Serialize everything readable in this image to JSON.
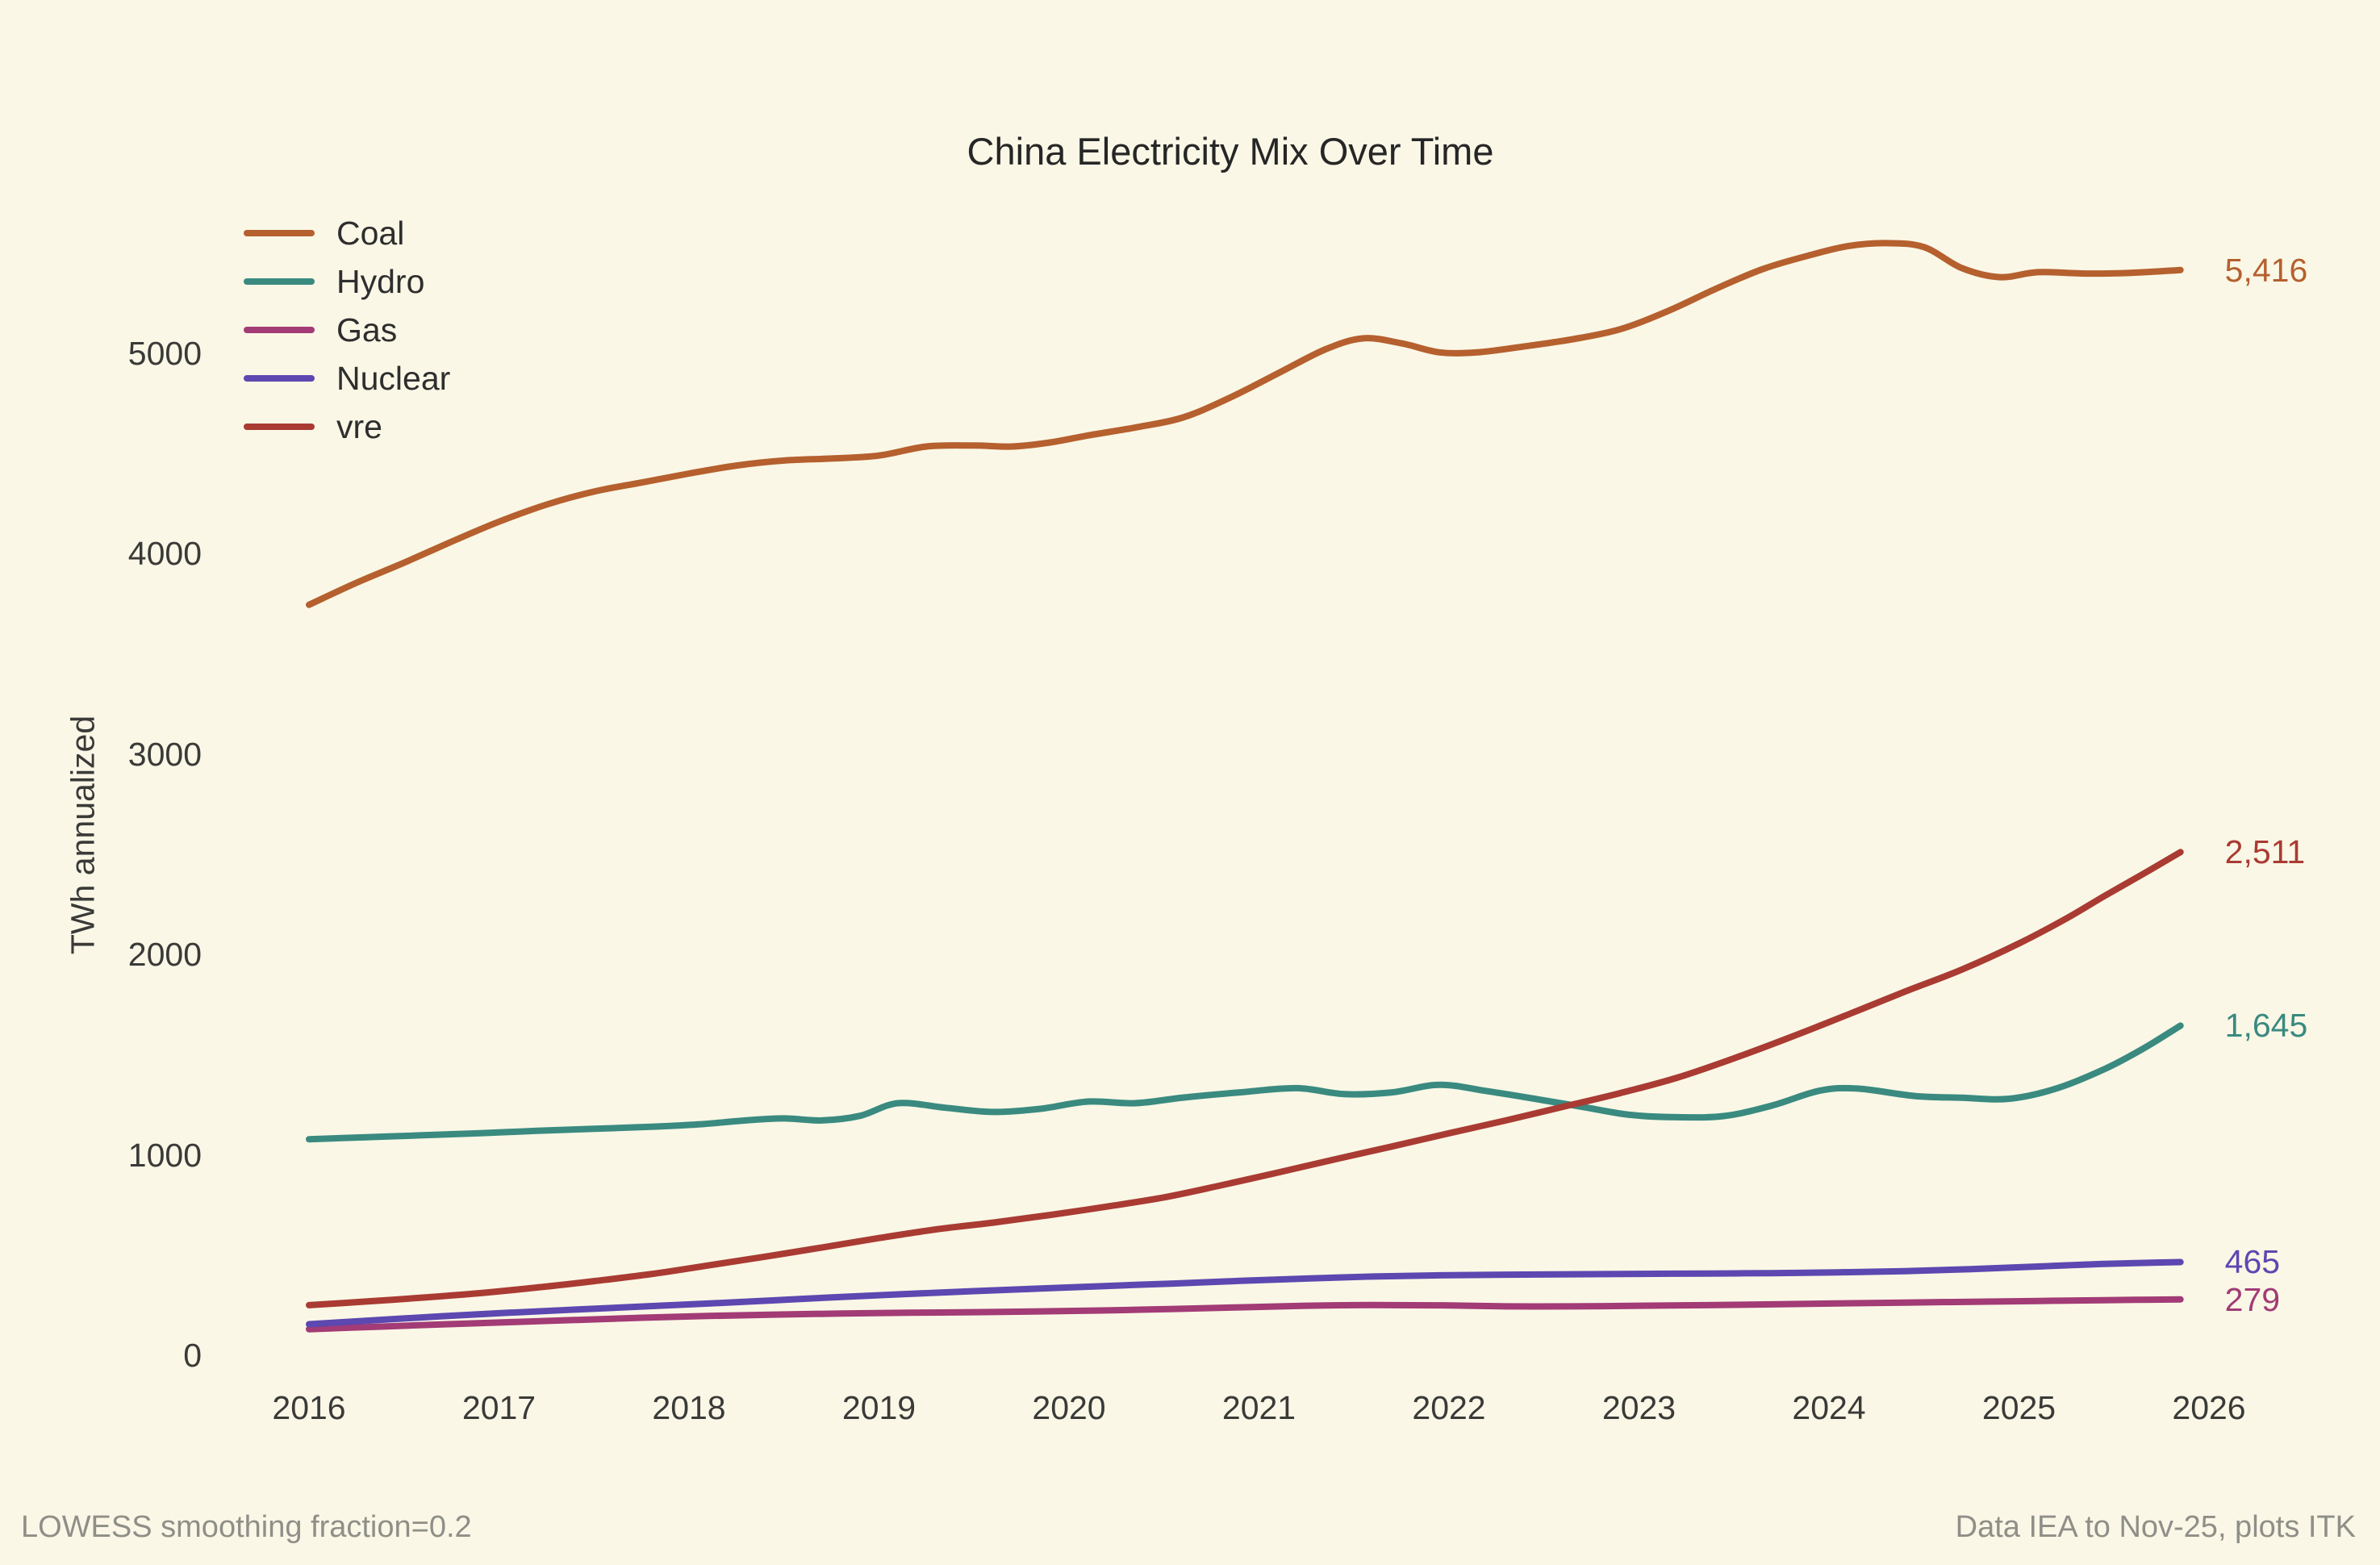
{
  "chart_data": {
    "type": "line",
    "title": "China Electricity Mix Over Time",
    "xlabel": "",
    "ylabel": "TWh annualized",
    "x_ticks": [
      2016,
      2017,
      2018,
      2019,
      2020,
      2021,
      2022,
      2023,
      2024,
      2025,
      2026
    ],
    "y_ticks": [
      0,
      1000,
      2000,
      3000,
      4000,
      5000
    ],
    "xlim": [
      2015.85,
      2026.9
    ],
    "ylim": [
      0,
      5800
    ],
    "grid": false,
    "axis_spines": false,
    "legend_position": "upper-left",
    "x_units": "year",
    "data_end": "Nov-2025",
    "series": [
      {
        "name": "Coal",
        "color": "#B5602E",
        "end_label": "5,416",
        "end_value": 5416,
        "x": [
          2016,
          2016.25,
          2016.5,
          2016.75,
          2017,
          2017.25,
          2017.5,
          2017.75,
          2018,
          2018.25,
          2018.5,
          2018.75,
          2019,
          2019.25,
          2019.5,
          2019.7,
          2019.9,
          2020.1,
          2020.35,
          2020.6,
          2020.85,
          2021.1,
          2021.35,
          2021.55,
          2021.75,
          2021.95,
          2022.15,
          2022.4,
          2022.65,
          2022.9,
          2023.15,
          2023.4,
          2023.65,
          2023.9,
          2024.1,
          2024.3,
          2024.5,
          2024.7,
          2024.9,
          2025.1,
          2025.35,
          2025.6,
          2025.85
        ],
        "y": [
          3745,
          3855,
          3955,
          4060,
          4160,
          4245,
          4310,
          4355,
          4400,
          4440,
          4465,
          4475,
          4490,
          4535,
          4540,
          4535,
          4555,
          4590,
          4630,
          4680,
          4780,
          4900,
          5020,
          5075,
          5050,
          5005,
          5005,
          5035,
          5070,
          5120,
          5210,
          5320,
          5420,
          5490,
          5535,
          5550,
          5530,
          5425,
          5380,
          5405,
          5398,
          5402,
          5416
        ]
      },
      {
        "name": "Hydro",
        "color": "#3A8A80",
        "end_label": "1,645",
        "end_value": 1645,
        "x": [
          2016,
          2016.3,
          2016.6,
          2016.9,
          2017.2,
          2017.5,
          2017.8,
          2018.05,
          2018.3,
          2018.5,
          2018.7,
          2018.9,
          2019.1,
          2019.35,
          2019.6,
          2019.85,
          2020.1,
          2020.35,
          2020.6,
          2020.9,
          2021.2,
          2021.45,
          2021.7,
          2021.95,
          2022.2,
          2022.45,
          2022.7,
          2022.95,
          2023.2,
          2023.45,
          2023.7,
          2023.95,
          2024.15,
          2024.45,
          2024.7,
          2024.95,
          2025.2,
          2025.45,
          2025.65,
          2025.85
        ],
        "y": [
          1078,
          1088,
          1098,
          1108,
          1120,
          1130,
          1140,
          1152,
          1172,
          1182,
          1172,
          1195,
          1258,
          1235,
          1214,
          1230,
          1266,
          1258,
          1286,
          1312,
          1333,
          1303,
          1312,
          1350,
          1318,
          1280,
          1240,
          1200,
          1188,
          1194,
          1246,
          1320,
          1331,
          1294,
          1285,
          1280,
          1332,
          1428,
          1528,
          1645
        ]
      },
      {
        "name": "Gas",
        "color": "#A23B76",
        "end_label": "279",
        "end_value": 279,
        "x": [
          2016,
          2016.35,
          2016.7,
          2017.05,
          2017.4,
          2017.75,
          2018.1,
          2018.45,
          2018.8,
          2019.15,
          2019.5,
          2019.85,
          2020.2,
          2020.55,
          2020.9,
          2021.25,
          2021.6,
          2021.95,
          2022.3,
          2022.65,
          2023,
          2023.35,
          2023.7,
          2024.05,
          2024.4,
          2024.75,
          2025.1,
          2025.45,
          2025.85
        ],
        "y": [
          130,
          142,
          154,
          165,
          176,
          187,
          196,
          203,
          208,
          212,
          215,
          219,
          224,
          231,
          239,
          247,
          251,
          249,
          244,
          244,
          247,
          250,
          254,
          259,
          263,
          267,
          271,
          275,
          279
        ]
      },
      {
        "name": "Nuclear",
        "color": "#5C48B0",
        "end_label": "465",
        "end_value": 465,
        "x": [
          2016,
          2016.35,
          2016.7,
          2017.05,
          2017.4,
          2017.75,
          2018.1,
          2018.45,
          2018.8,
          2019.15,
          2019.5,
          2019.85,
          2020.2,
          2020.55,
          2020.9,
          2021.25,
          2021.6,
          2021.95,
          2022.3,
          2022.65,
          2023,
          2023.35,
          2023.7,
          2024.05,
          2024.4,
          2024.75,
          2025.1,
          2025.45,
          2025.85
        ],
        "y": [
          155,
          175,
          195,
          212,
          228,
          243,
          258,
          274,
          291,
          306,
          320,
          333,
          346,
          358,
          371,
          383,
          393,
          399,
          402,
          404,
          406,
          408,
          410,
          414,
          420,
          430,
          443,
          456,
          465
        ]
      },
      {
        "name": "vre",
        "color": "#A93B33",
        "end_label": "2,511",
        "end_value": 2511,
        "x": [
          2016,
          2016.3,
          2016.6,
          2016.9,
          2017.2,
          2017.5,
          2017.8,
          2018.1,
          2018.4,
          2018.7,
          2019,
          2019.3,
          2019.6,
          2019.9,
          2020.2,
          2020.5,
          2020.8,
          2021.1,
          2021.4,
          2021.7,
          2022,
          2022.3,
          2022.6,
          2022.9,
          2023.2,
          2023.5,
          2023.8,
          2024.1,
          2024.4,
          2024.7,
          2025,
          2025.25,
          2025.45,
          2025.65,
          2025.85
        ],
        "y": [
          250,
          268,
          288,
          310,
          338,
          370,
          405,
          448,
          492,
          538,
          585,
          628,
          662,
          700,
          742,
          788,
          848,
          912,
          978,
          1042,
          1108,
          1172,
          1240,
          1308,
          1385,
          1482,
          1588,
          1700,
          1815,
          1925,
          2055,
          2180,
          2292,
          2400,
          2511
        ]
      }
    ]
  },
  "footnotes": {
    "left": "LOWESS smoothing fraction=0.2",
    "right": "Data IEA to Nov-25, plots ITK"
  },
  "colors": {
    "background": "#FAF7E6",
    "title_text": "#262626",
    "tick_text": "#3A3A38",
    "footnote_text": "#8F8F88"
  }
}
